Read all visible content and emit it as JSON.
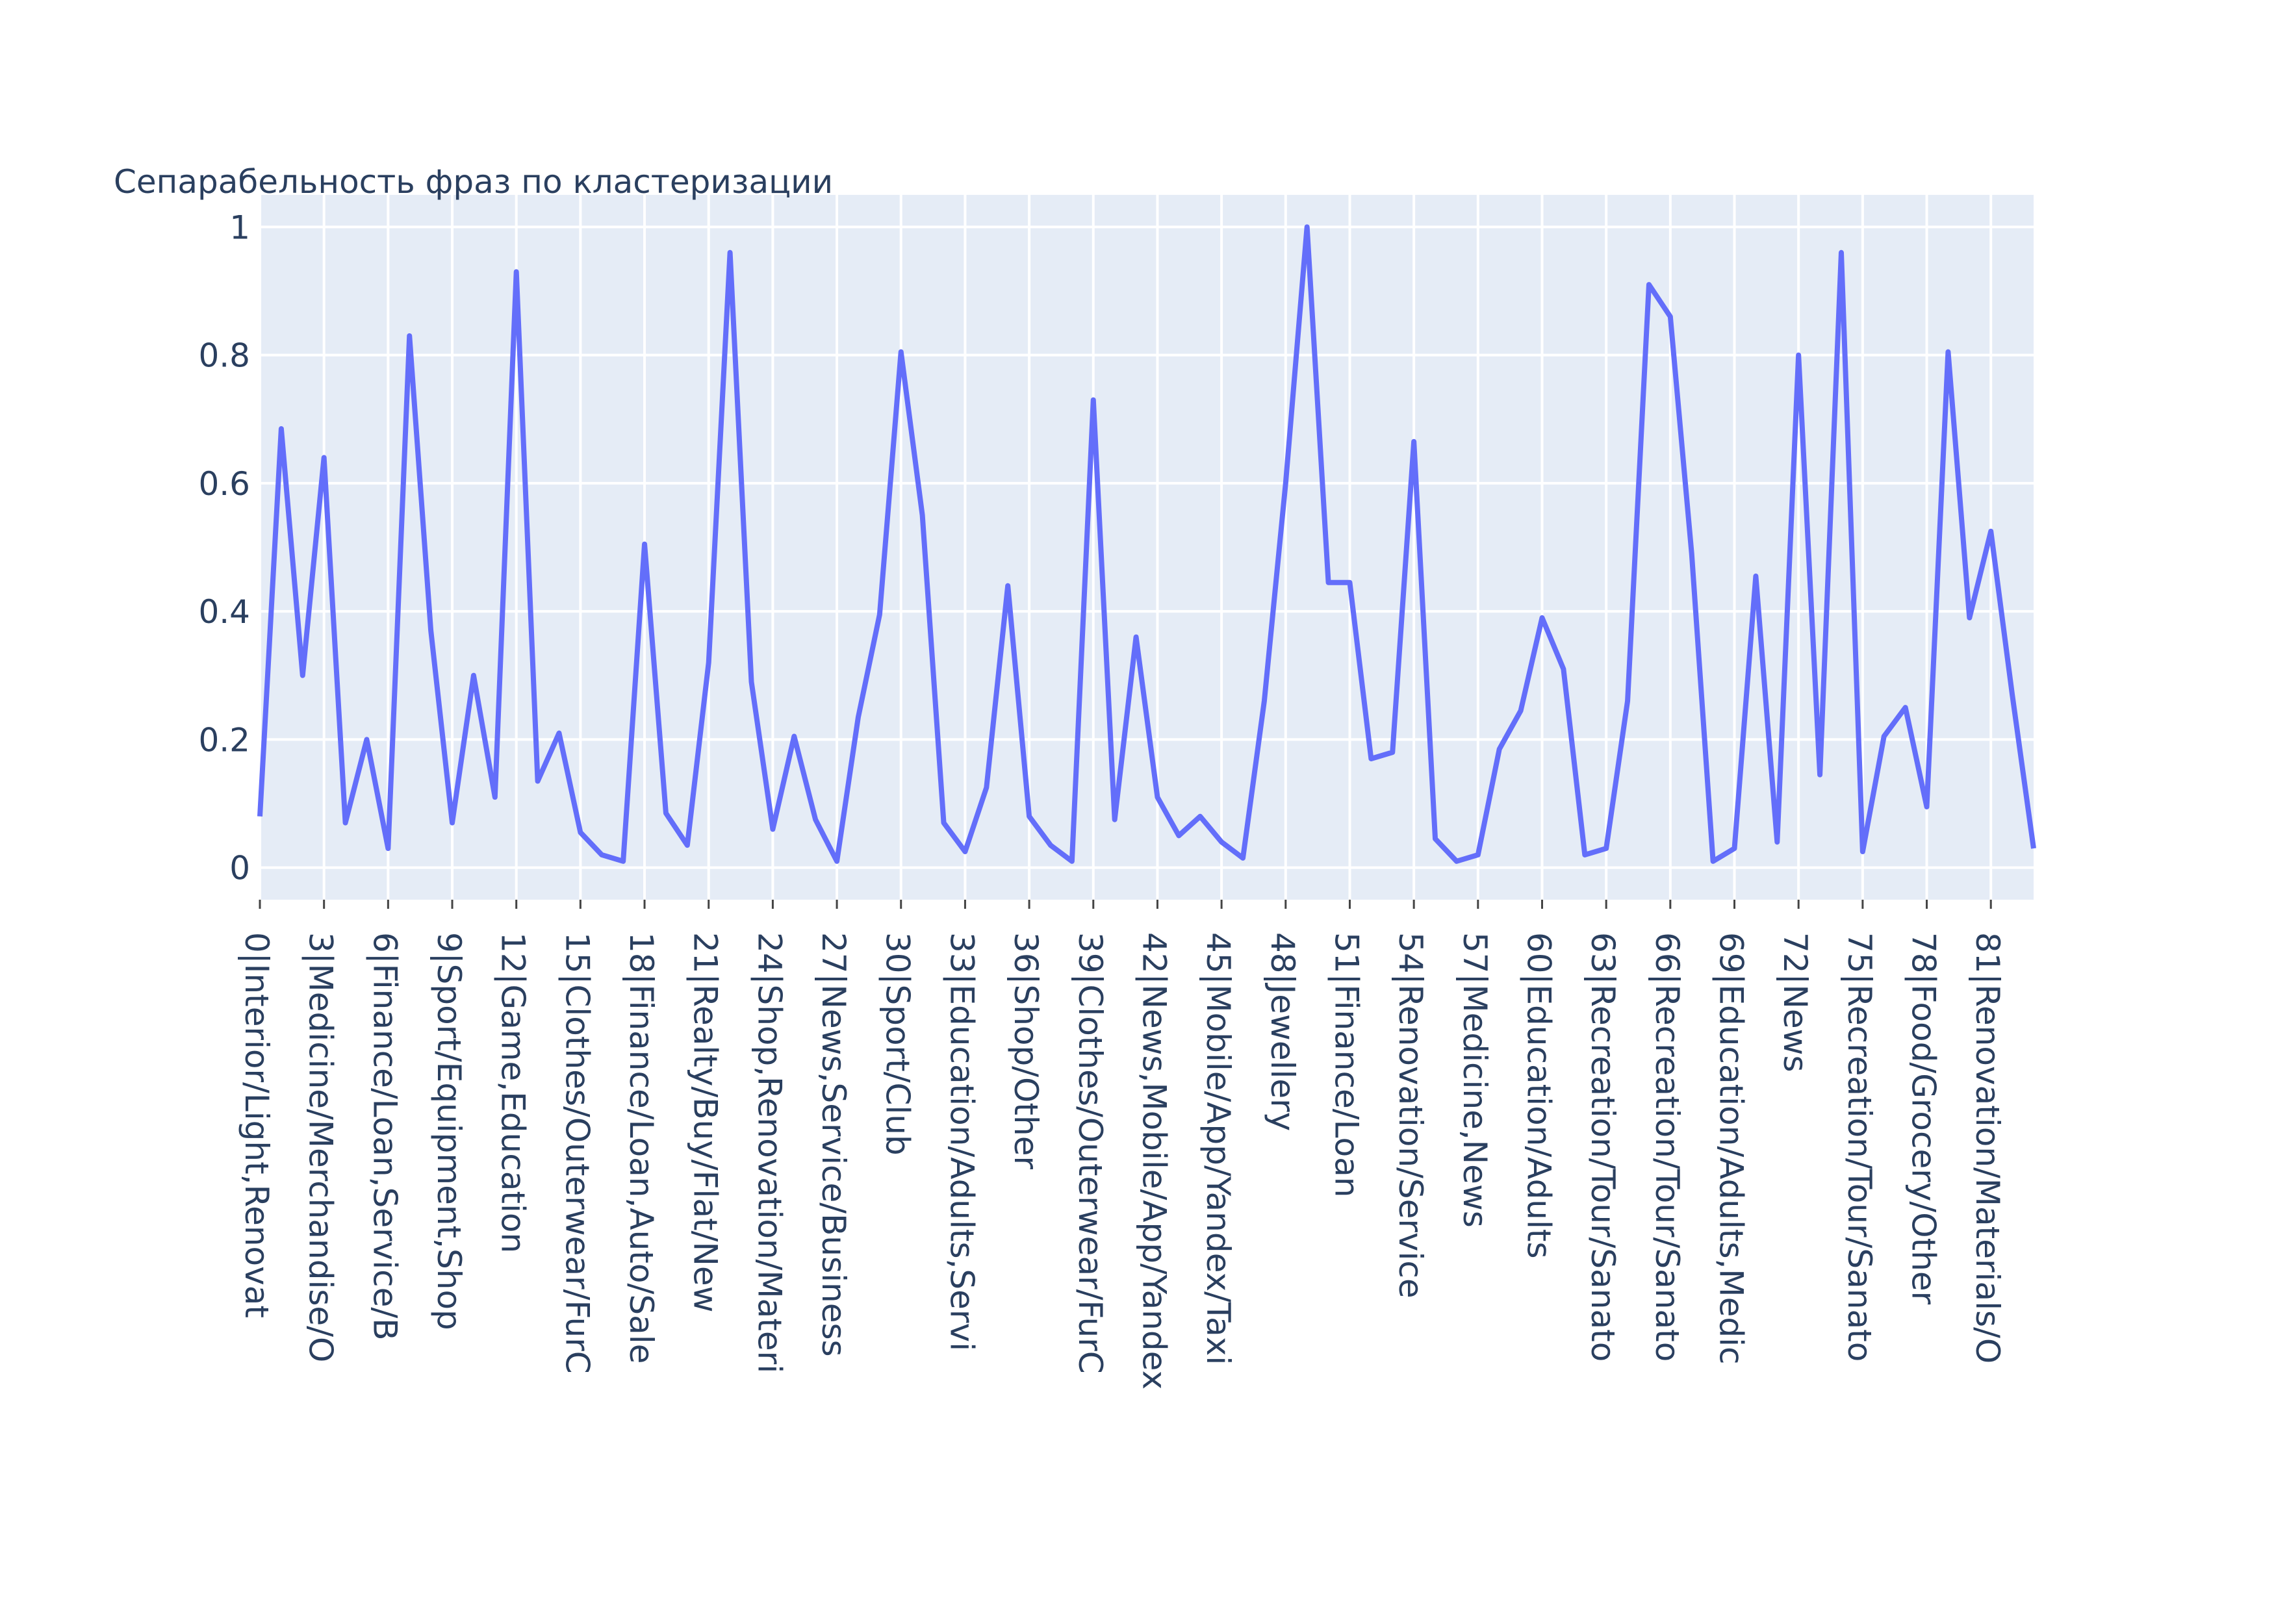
{
  "chart_data": {
    "type": "line",
    "title": "Сепарабельность фраз по кластеризации",
    "xlabel": "",
    "ylabel": "",
    "ylim": [
      -0.05,
      1.05
    ],
    "grid": true,
    "colors": {
      "line": "#636efa",
      "plot_bg": "#e5ecf6",
      "grid": "#ffffff",
      "text": "#2a3f5f"
    },
    "x_ticks": [
      {
        "index": 0,
        "label": "0|Interior/Light,Renovat"
      },
      {
        "index": 3,
        "label": "3|Medicine/Merchandise/O"
      },
      {
        "index": 6,
        "label": "6|Finance/Loan,Service/B"
      },
      {
        "index": 9,
        "label": "9|Sport/Equipment,Shop"
      },
      {
        "index": 12,
        "label": "12|Game,Education"
      },
      {
        "index": 15,
        "label": "15|Clothes/Outerwear/FurC"
      },
      {
        "index": 18,
        "label": "18|Finance/Loan,Auto/Sale"
      },
      {
        "index": 21,
        "label": "21|Realty/Buy/Flat/New"
      },
      {
        "index": 24,
        "label": "24|Shop,Renovation/Materi"
      },
      {
        "index": 27,
        "label": "27|News,Service/Business"
      },
      {
        "index": 30,
        "label": "30|Sport/Club"
      },
      {
        "index": 33,
        "label": "33|Education/Adults,Servi"
      },
      {
        "index": 36,
        "label": "36|Shop/Other"
      },
      {
        "index": 39,
        "label": "39|Clothes/Outerwear/FurC"
      },
      {
        "index": 42,
        "label": "42|News,Mobile/App/Yandex"
      },
      {
        "index": 45,
        "label": "45|Mobile/App/Yandex/Taxi"
      },
      {
        "index": 48,
        "label": "48|Jewellery"
      },
      {
        "index": 51,
        "label": "51|Finance/Loan"
      },
      {
        "index": 54,
        "label": "54|Renovation/Service"
      },
      {
        "index": 57,
        "label": "57|Medicine,News"
      },
      {
        "index": 60,
        "label": "60|Education/Adults"
      },
      {
        "index": 63,
        "label": "63|Recreation/Tour/Sanato"
      },
      {
        "index": 66,
        "label": "66|Recreation/Tour/Sanato"
      },
      {
        "index": 69,
        "label": "69|Education/Adults,Medic"
      },
      {
        "index": 72,
        "label": "72|News"
      },
      {
        "index": 75,
        "label": "75|Recreation/Tour/Sanato"
      },
      {
        "index": 78,
        "label": "78|Food/Grocery/Other"
      },
      {
        "index": 81,
        "label": "81|Renovation/Materials/O"
      }
    ],
    "y_ticks": [
      {
        "value": 0,
        "label": "0"
      },
      {
        "value": 0.2,
        "label": "0.2"
      },
      {
        "value": 0.4,
        "label": "0.4"
      },
      {
        "value": 0.6,
        "label": "0.6"
      },
      {
        "value": 0.8,
        "label": "0.8"
      },
      {
        "value": 1,
        "label": "1"
      }
    ],
    "series": [
      {
        "values": [
          0.08,
          0.685,
          0.3,
          0.64,
          0.07,
          0.2,
          0.03,
          0.83,
          0.37,
          0.07,
          0.3,
          0.11,
          0.93,
          0.135,
          0.21,
          0.055,
          0.02,
          0.01,
          0.505,
          0.085,
          0.035,
          0.32,
          0.96,
          0.29,
          0.06,
          0.205,
          0.075,
          0.01,
          0.235,
          0.395,
          0.805,
          0.55,
          0.07,
          0.025,
          0.125,
          0.44,
          0.08,
          0.035,
          0.01,
          0.73,
          0.075,
          0.36,
          0.11,
          0.05,
          0.08,
          0.04,
          0.015,
          0.26,
          0.6,
          1.0,
          0.445,
          0.445,
          0.17,
          0.18,
          0.665,
          0.045,
          0.01,
          0.02,
          0.185,
          0.245,
          0.39,
          0.31,
          0.02,
          0.03,
          0.26,
          0.91,
          0.86,
          0.49,
          0.01,
          0.03,
          0.455,
          0.04,
          0.8,
          0.145,
          0.96,
          0.025,
          0.205,
          0.25,
          0.095,
          0.805,
          0.39,
          0.525,
          0.27,
          0.03
        ]
      }
    ]
  }
}
